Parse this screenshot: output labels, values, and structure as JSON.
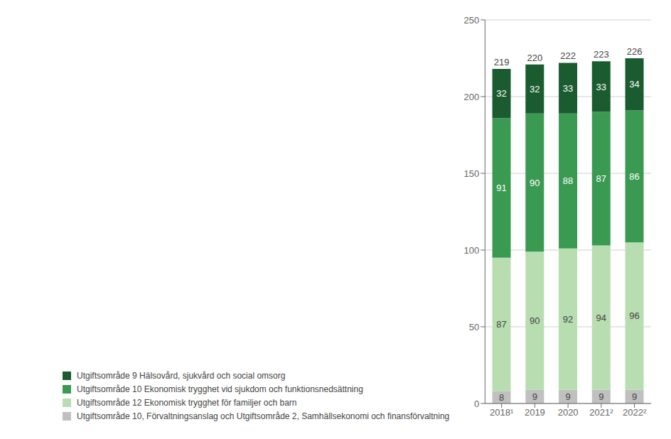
{
  "chart_data": {
    "type": "bar",
    "stacked": true,
    "data_labels": true,
    "grid": true,
    "legend": "bottom",
    "categories": [
      "2018¹",
      "2019",
      "2020",
      "2021²",
      "2022²"
    ],
    "series": [
      {
        "name": "Utgiftsområde 10, Förvaltningsanslag och Utgiftsområde 2, Samhällsekonomi och finansförvaltning",
        "color": "#c0c0c0",
        "values": [
          8,
          9,
          9,
          9,
          9
        ]
      },
      {
        "name": "Utgiftsområde 12 Ekonomisk trygghet för familjer och barn",
        "color": "#b8ddb0",
        "values": [
          87,
          90,
          92,
          94,
          96
        ]
      },
      {
        "name": "Utgiftsområde 10 Ekonomisk trygghet vid sjukdom och funktionsnedsättning",
        "color": "#3a9a52",
        "values": [
          91,
          90,
          88,
          87,
          86
        ]
      },
      {
        "name": "Utgiftsområde 9 Hälsovård, sjukvård och social omsorg",
        "color": "#1a5c30",
        "values": [
          32,
          32,
          33,
          33,
          34
        ]
      }
    ],
    "totals": [
      219,
      220,
      222,
      223,
      226
    ],
    "ylim": [
      0,
      250
    ],
    "yticks": [
      0,
      50,
      100,
      150,
      200,
      250
    ]
  }
}
